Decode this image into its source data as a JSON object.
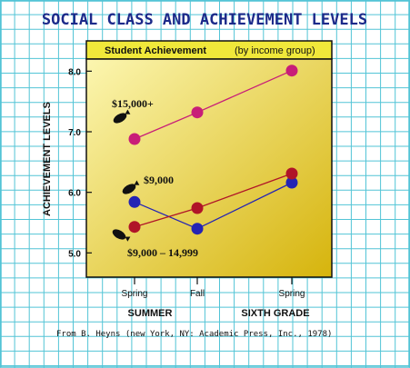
{
  "colors": {
    "grid_line": "#52c4d6",
    "background": "#ffffff",
    "title": "#1c2a8a",
    "header_bar": "#f0e83a",
    "plot_light": "#fcf6b0",
    "plot_dark": "#d6b40c",
    "series_magenta": "#c81e78",
    "series_crimson": "#b01428",
    "series_blue": "#2424b4",
    "text_dark": "#111111"
  },
  "chart_data": {
    "type": "line",
    "title": "SOCIAL CLASS AND ACHIEVEMENT LEVELS",
    "header": "Student Achievement",
    "header_note": "(by income group)",
    "ylabel": "ACHIEVEMENT LEVELS",
    "ylim": [
      4.6,
      8.2
    ],
    "yticks": [
      "8.0",
      "7.0",
      "6.0",
      "5.0"
    ],
    "x_tick_labels": [
      "Spring",
      "Fall",
      "Spring"
    ],
    "group_labels": [
      "SUMMER",
      "SIXTH GRADE"
    ],
    "x": [
      0,
      1,
      2
    ],
    "series": [
      {
        "name": "$15,000+",
        "values": [
          6.88,
          7.32,
          8.01
        ],
        "color": "#c81e78"
      },
      {
        "name": "$9,000",
        "values": [
          5.84,
          5.4,
          6.16
        ],
        "color": "#2424b4"
      },
      {
        "name": "$9,000 – 14,999",
        "values": [
          5.43,
          5.74,
          6.31
        ],
        "color": "#b01428"
      }
    ],
    "source": "From B. Heyns (new York, NY: Academic Press, Inc., 1978)"
  }
}
